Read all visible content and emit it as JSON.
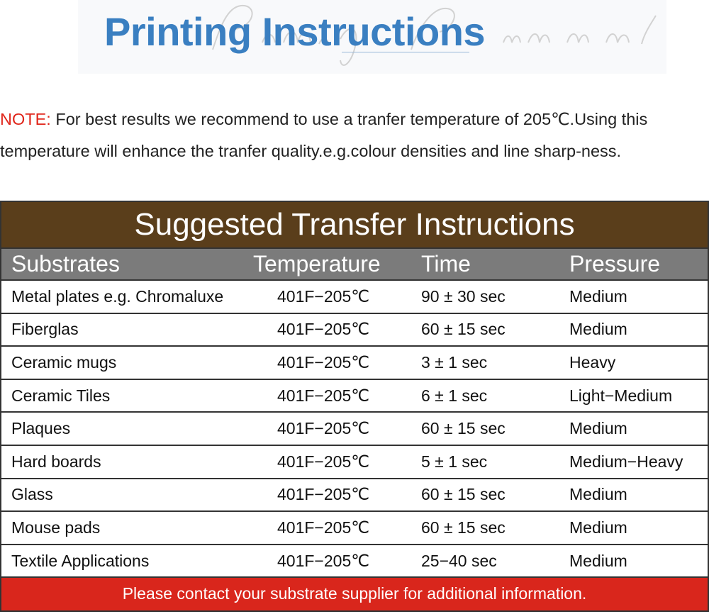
{
  "header": {
    "title": "Printing Instructions",
    "watermark": "Printing Instructions"
  },
  "note": {
    "label": "NOTE:",
    "text": " For best results we recommend to use a tranfer temperature of 205℃.Using this temperature will enhance the tranfer quality.e.g.colour densities and line sharp-ness."
  },
  "table": {
    "caption": "Suggested Transfer Instructions",
    "columns": [
      "Substrates",
      "Temperature",
      "Time",
      "Pressure"
    ],
    "rows": [
      [
        "Metal plates e.g. Chromaluxe",
        "401F−205℃",
        "90 ± 30 sec",
        "Medium"
      ],
      [
        "Fiberglas",
        "401F−205℃",
        "60 ± 15 sec",
        "Medium"
      ],
      [
        "Ceramic mugs",
        "401F−205℃",
        "3 ± 1 sec",
        "Heavy"
      ],
      [
        "Ceramic Tiles",
        "401F−205℃",
        "6 ± 1 sec",
        "Light−Medium"
      ],
      [
        "Plaques",
        "401F−205℃",
        "60 ± 15 sec",
        "Medium"
      ],
      [
        "Hard boards",
        "401F−205℃",
        "5 ± 1 sec",
        "Medium−Heavy"
      ],
      [
        "Glass",
        "401F−205℃",
        "60 ± 15 sec",
        "Medium"
      ],
      [
        "Mouse pads",
        "401F−205℃",
        "60 ± 15 sec",
        "Medium"
      ],
      [
        "Textile Applications",
        "401F−205℃",
        "25−40 sec",
        "Medium"
      ]
    ],
    "footer": "Please contact your substrate supplier for additional information."
  },
  "colors": {
    "title": "#3a7fc1",
    "caption_bg": "#5a3e1b",
    "header_bg": "#7b7b7b",
    "footer_bg": "#d9261c",
    "note_label": "#e0261b"
  }
}
